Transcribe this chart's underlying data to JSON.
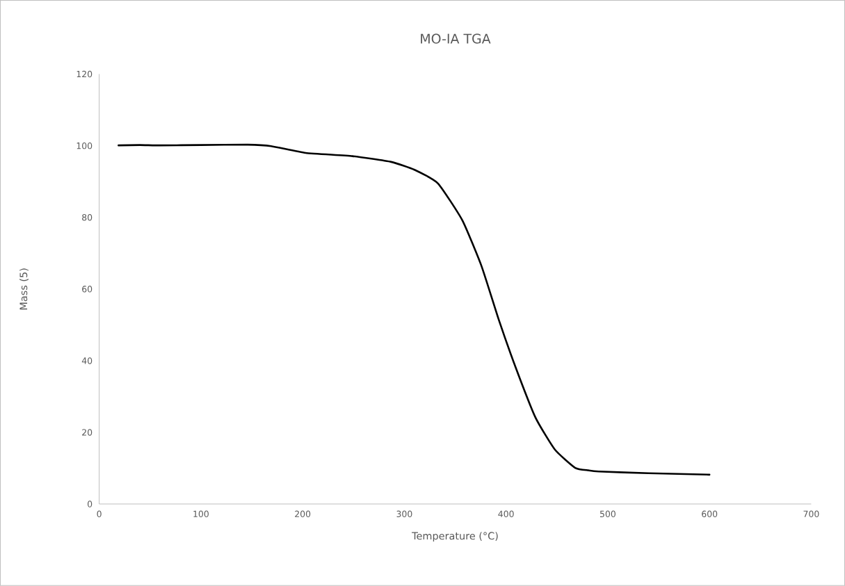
{
  "chart_data": {
    "type": "line",
    "title": "MO-IA TGA",
    "xlabel": "Temperature (°C)",
    "ylabel": "Mass (5)",
    "xlim": [
      0,
      700
    ],
    "xticks": [
      0,
      100,
      200,
      300,
      400,
      500,
      600,
      700
    ],
    "ylim": [
      0,
      120
    ],
    "yticks": [
      0,
      20,
      40,
      60,
      80,
      100,
      120
    ],
    "series": [
      {
        "color": "#000000",
        "x": [
          19,
          40,
          60,
          100,
          146,
          169,
          203,
          249,
          287,
          310,
          333,
          357,
          376,
          393,
          410,
          429,
          448,
          468,
          481,
          491,
          540,
          600
        ],
        "values": [
          100.1,
          100.2,
          100.1,
          100.2,
          100.3,
          99.9,
          98,
          97.1,
          95.5,
          93.3,
          89.5,
          79.2,
          66.3,
          51.3,
          37.7,
          24.1,
          15.2,
          10.1,
          9.4,
          9.1,
          8.6,
          8.2
        ]
      }
    ]
  }
}
